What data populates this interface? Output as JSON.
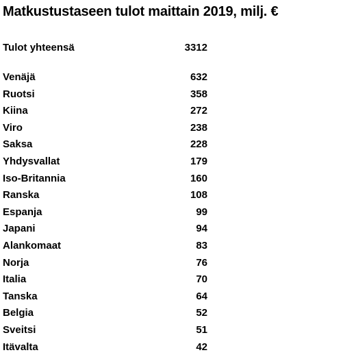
{
  "title": "Matkustustaseen tulot maittain 2019, milj. €",
  "total": {
    "label": "Tulot yhteensä",
    "value": 3312
  },
  "rows": [
    [
      "Venäjä",
      632
    ],
    [
      "Ruotsi",
      358
    ],
    [
      "Kiina",
      272
    ],
    [
      "Viro",
      238
    ],
    [
      "Saksa",
      228
    ],
    [
      "Yhdysvallat",
      179
    ],
    [
      "Iso-Britannia",
      160
    ],
    [
      "Ranska",
      108
    ],
    [
      "Espanja",
      99
    ],
    [
      "Japani",
      94
    ],
    [
      "Alankomaat",
      83
    ],
    [
      "Norja",
      76
    ],
    [
      "Italia",
      70
    ],
    [
      "Tanska",
      64
    ],
    [
      "Belgia",
      52
    ],
    [
      "Sveitsi",
      51
    ],
    [
      "Itävalta",
      42
    ]
  ]
}
